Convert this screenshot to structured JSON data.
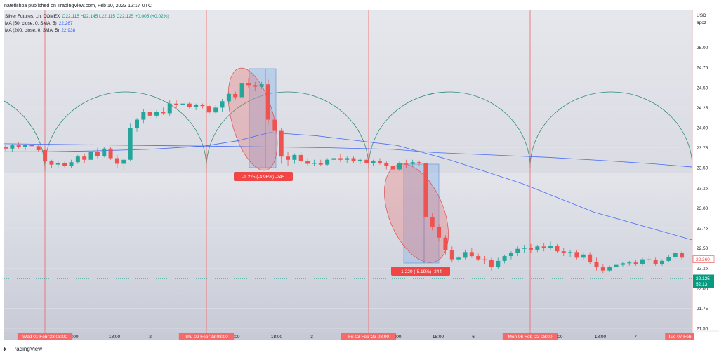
{
  "header": {
    "publish_text": "natefishpa published on TradingView.com, Feb 10, 2023 12:17 UTC"
  },
  "legend": {
    "symbol": "Silver Futures, 1h, COMEX",
    "ohlc": "O22.115  H22.145  L22.115  C22.125  +0.005 (+0.02%)",
    "ma50_label": "MA (50, close, 0, SMA, 5)",
    "ma50_value": "22.267",
    "ma200_label": "MA (200, close, 0, SMA, 5)",
    "ma200_value": "22.938"
  },
  "price_axis": {
    "currency": "USD",
    "unit": "apoz",
    "ylim": [
      21.5,
      25.25
    ]
  },
  "measure_tags": [
    {
      "text": "-1.225 (-4.96%) -245"
    },
    {
      "text": "-1.220 (-5.19%) -244"
    }
  ],
  "last_price": {
    "close": "22.125",
    "countdown": "52:13",
    "ma50": "22.360"
  },
  "footer": {
    "brand": "TradingView"
  },
  "colors": {
    "up": "#26a69a",
    "down": "#ef5350",
    "ma": "#4a6cf7",
    "arc": "#2e8b74",
    "vline": "#f06262"
  },
  "chart_data": {
    "type": "candlestick",
    "title": "Silver Futures, 1h, COMEX",
    "ylim": [
      21.5,
      25.25
    ],
    "y_ticks": [
      21.5,
      21.75,
      22.0,
      22.25,
      22.5,
      22.75,
      23.0,
      23.25,
      23.5,
      23.75,
      24.0,
      24.25,
      24.5,
      24.75,
      25.0
    ],
    "x_tick_labels": [
      {
        "label": "Wed 01 Feb '23  08:00",
        "highlight": true
      },
      {
        "label": ":00",
        "highlight": false
      },
      {
        "label": "18:00",
        "highlight": false
      },
      {
        "label": "2",
        "highlight": false
      },
      {
        "label": "Thu 02 Feb '23  08:00",
        "highlight": true
      },
      {
        "label": ":00",
        "highlight": false
      },
      {
        "label": "18:00",
        "highlight": false
      },
      {
        "label": "3",
        "highlight": false
      },
      {
        "label": "Fri 03 Feb '23  08:00",
        "highlight": true
      },
      {
        "label": ":00",
        "highlight": false
      },
      {
        "label": "18:00",
        "highlight": false
      },
      {
        "label": "6",
        "highlight": false
      },
      {
        "label": "Mon 06 Feb '23  08:00",
        "highlight": true
      },
      {
        "label": ":00",
        "highlight": false
      },
      {
        "label": "18:00",
        "highlight": false
      },
      {
        "label": "7",
        "highlight": false
      },
      {
        "label": "Tue 07 Feb",
        "highlight": true
      }
    ],
    "candles": [
      [
        23.76,
        23.79,
        23.71,
        23.74
      ],
      [
        23.74,
        23.8,
        23.7,
        23.78
      ],
      [
        23.78,
        23.82,
        23.74,
        23.76
      ],
      [
        23.76,
        23.8,
        23.72,
        23.79
      ],
      [
        23.79,
        23.82,
        23.75,
        23.77
      ],
      [
        23.77,
        23.79,
        23.7,
        23.72
      ],
      [
        23.72,
        23.74,
        23.46,
        23.58
      ],
      [
        23.58,
        23.6,
        23.5,
        23.54
      ],
      [
        23.54,
        23.58,
        23.49,
        23.56
      ],
      [
        23.56,
        23.58,
        23.5,
        23.52
      ],
      [
        23.52,
        23.6,
        23.5,
        23.57
      ],
      [
        23.57,
        23.66,
        23.55,
        23.64
      ],
      [
        23.64,
        23.68,
        23.56,
        23.6
      ],
      [
        23.6,
        23.72,
        23.58,
        23.7
      ],
      [
        23.7,
        23.75,
        23.62,
        23.65
      ],
      [
        23.65,
        23.76,
        23.63,
        23.74
      ],
      [
        23.74,
        23.76,
        23.6,
        23.62
      ],
      [
        23.62,
        23.66,
        23.5,
        23.55
      ],
      [
        23.55,
        23.62,
        23.47,
        23.6
      ],
      [
        23.6,
        24.05,
        23.58,
        24.0
      ],
      [
        24.0,
        24.12,
        23.95,
        24.1
      ],
      [
        24.1,
        24.23,
        24.05,
        24.2
      ],
      [
        24.2,
        24.24,
        24.12,
        24.15
      ],
      [
        24.15,
        24.22,
        24.12,
        24.2
      ],
      [
        24.2,
        24.25,
        24.16,
        24.18
      ],
      [
        24.18,
        24.34,
        24.15,
        24.3
      ],
      [
        24.3,
        24.34,
        24.24,
        24.28
      ],
      [
        24.28,
        24.32,
        24.25,
        24.3
      ],
      [
        24.3,
        24.32,
        24.24,
        24.26
      ],
      [
        24.26,
        24.3,
        24.22,
        24.28
      ],
      [
        24.28,
        24.3,
        24.24,
        24.27
      ],
      [
        24.27,
        24.29,
        24.16,
        24.19
      ],
      [
        24.19,
        24.28,
        24.17,
        24.25
      ],
      [
        24.25,
        24.36,
        24.2,
        24.33
      ],
      [
        24.33,
        24.44,
        24.3,
        24.42
      ],
      [
        24.42,
        24.45,
        24.35,
        24.38
      ],
      [
        24.38,
        24.58,
        24.36,
        24.55
      ],
      [
        24.55,
        24.62,
        24.5,
        24.53
      ],
      [
        24.53,
        24.57,
        24.46,
        24.51
      ],
      [
        24.51,
        24.57,
        24.48,
        24.54
      ],
      [
        24.54,
        24.6,
        24.04,
        24.1
      ],
      [
        24.1,
        24.18,
        23.92,
        23.96
      ],
      [
        23.96,
        24.0,
        23.55,
        23.64
      ],
      [
        23.64,
        23.7,
        23.52,
        23.6
      ],
      [
        23.6,
        23.68,
        23.55,
        23.66
      ],
      [
        23.66,
        23.7,
        23.56,
        23.58
      ],
      [
        23.58,
        23.62,
        23.52,
        23.55
      ],
      [
        23.55,
        23.6,
        23.52,
        23.56
      ],
      [
        23.56,
        23.6,
        23.52,
        23.54
      ],
      [
        23.54,
        23.62,
        23.52,
        23.6
      ],
      [
        23.6,
        23.66,
        23.56,
        23.62
      ],
      [
        23.62,
        23.67,
        23.57,
        23.6
      ],
      [
        23.6,
        23.64,
        23.56,
        23.62
      ],
      [
        23.62,
        23.64,
        23.56,
        23.58
      ],
      [
        23.58,
        23.62,
        23.55,
        23.6
      ],
      [
        23.6,
        23.62,
        23.54,
        23.56
      ],
      [
        23.56,
        23.6,
        23.52,
        23.58
      ],
      [
        23.58,
        23.62,
        23.54,
        23.56
      ],
      [
        23.56,
        23.58,
        23.48,
        23.52
      ],
      [
        23.52,
        23.56,
        23.45,
        23.48
      ],
      [
        23.48,
        23.58,
        23.46,
        23.56
      ],
      [
        23.56,
        23.6,
        23.5,
        23.55
      ],
      [
        23.55,
        23.6,
        23.52,
        23.57
      ],
      [
        23.57,
        23.59,
        23.53,
        23.56
      ],
      [
        23.56,
        23.58,
        22.85,
        22.89
      ],
      [
        22.89,
        22.94,
        22.72,
        22.76
      ],
      [
        22.76,
        22.8,
        22.58,
        22.63
      ],
      [
        22.63,
        22.66,
        22.42,
        22.47
      ],
      [
        22.47,
        22.52,
        22.32,
        22.36
      ],
      [
        22.36,
        22.4,
        22.33,
        22.38
      ],
      [
        22.38,
        22.48,
        22.36,
        22.45
      ],
      [
        22.45,
        22.5,
        22.38,
        22.4
      ],
      [
        22.4,
        22.43,
        22.34,
        22.36
      ],
      [
        22.36,
        22.4,
        22.3,
        22.35
      ],
      [
        22.35,
        22.38,
        22.22,
        22.26
      ],
      [
        22.26,
        22.38,
        22.24,
        22.34
      ],
      [
        22.34,
        22.42,
        22.31,
        22.4
      ],
      [
        22.4,
        22.46,
        22.36,
        22.44
      ],
      [
        22.44,
        22.52,
        22.4,
        22.49
      ],
      [
        22.49,
        22.54,
        22.44,
        22.5
      ],
      [
        22.5,
        22.55,
        22.44,
        22.48
      ],
      [
        22.48,
        22.54,
        22.45,
        22.52
      ],
      [
        22.52,
        22.56,
        22.46,
        22.5
      ],
      [
        22.5,
        22.58,
        22.48,
        22.53
      ],
      [
        22.53,
        22.55,
        22.44,
        22.46
      ],
      [
        22.46,
        22.5,
        22.4,
        22.44
      ],
      [
        22.44,
        22.48,
        22.39,
        22.45
      ],
      [
        22.45,
        22.47,
        22.36,
        22.38
      ],
      [
        22.38,
        22.45,
        22.35,
        22.42
      ],
      [
        22.42,
        22.45,
        22.3,
        22.33
      ],
      [
        22.33,
        22.38,
        22.22,
        22.26
      ],
      [
        22.26,
        22.3,
        22.19,
        22.22
      ],
      [
        22.22,
        22.28,
        22.2,
        22.26
      ],
      [
        22.26,
        22.31,
        22.24,
        22.29
      ],
      [
        22.29,
        22.33,
        22.27,
        22.31
      ],
      [
        22.31,
        22.34,
        22.28,
        22.32
      ],
      [
        22.32,
        22.35,
        22.28,
        22.3
      ],
      [
        22.3,
        22.38,
        22.28,
        22.36
      ],
      [
        22.36,
        22.4,
        22.32,
        22.35
      ],
      [
        22.35,
        22.38,
        22.28,
        22.3
      ],
      [
        22.3,
        22.36,
        22.28,
        22.34
      ],
      [
        22.34,
        22.41,
        22.33,
        22.39
      ],
      [
        22.39,
        22.46,
        22.36,
        22.44
      ],
      [
        22.44,
        22.46,
        22.35,
        22.38
      ]
    ],
    "ma200": [
      23.7,
      23.7,
      23.71,
      23.73,
      23.77,
      23.84,
      23.94,
      23.9,
      23.78,
      23.6,
      23.3,
      22.95,
      22.74,
      22.6
    ],
    "ma_flat": [
      23.8,
      23.79,
      23.78,
      23.77,
      23.76,
      23.75,
      23.73,
      23.69,
      23.66,
      23.63,
      23.59,
      23.55,
      23.51
    ]
  }
}
